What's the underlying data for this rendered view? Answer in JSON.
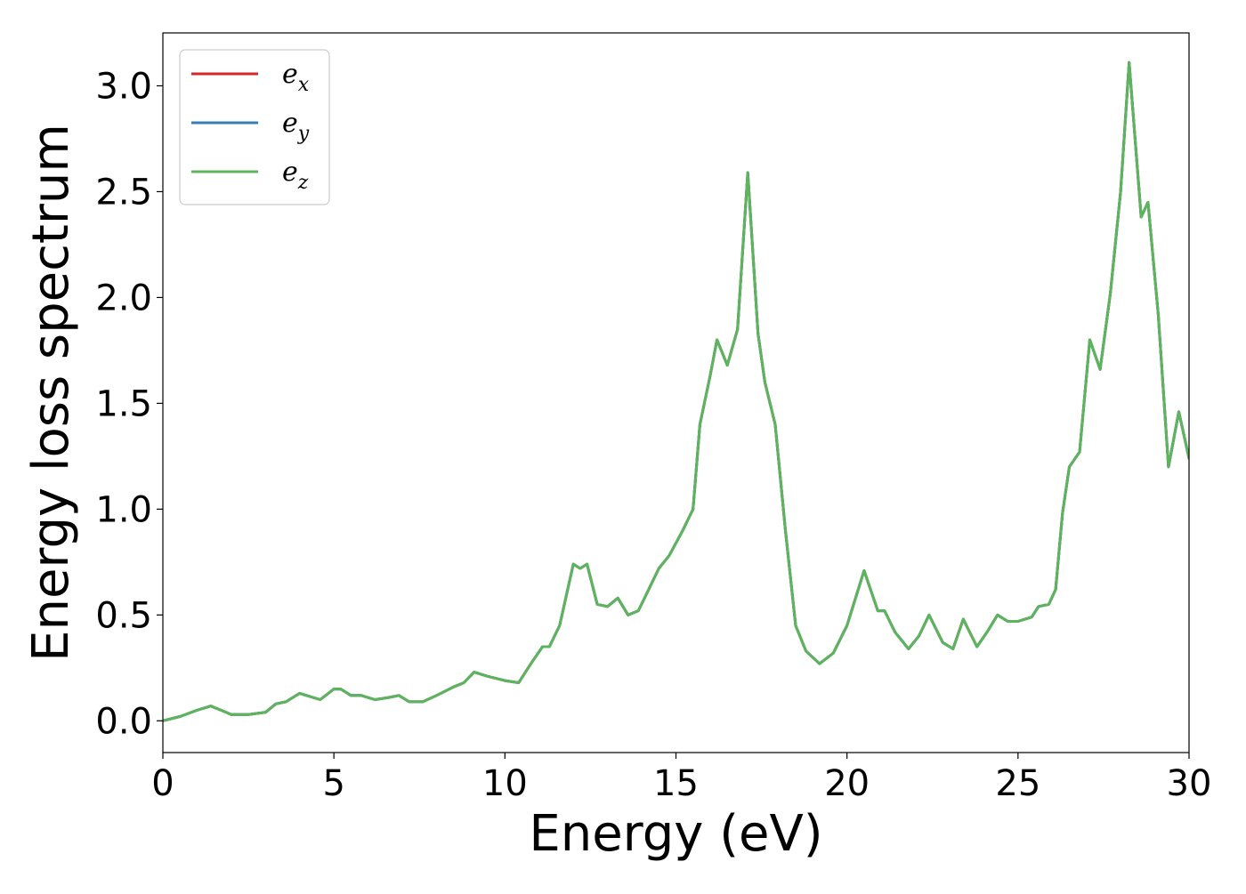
{
  "chart_data": {
    "type": "line",
    "title": "",
    "xlabel": "Energy (eV)",
    "ylabel": "Energy loss spectrum",
    "xlim": [
      0,
      30
    ],
    "ylim": [
      -0.15,
      3.25
    ],
    "xticks": [
      "0",
      "5",
      "10",
      "15",
      "20",
      "25",
      "30"
    ],
    "yticks": [
      "0.0",
      "0.5",
      "1.0",
      "1.5",
      "2.0",
      "2.5",
      "3.0"
    ],
    "grid": false,
    "legend_position": "top-left",
    "series": [
      {
        "name": "e_x",
        "label_base": "e",
        "label_sub": "x",
        "color": "#d62728",
        "x": [
          0,
          0.5,
          1.0,
          1.4,
          1.7,
          2.0,
          2.5,
          3.0,
          3.3,
          3.6,
          4.0,
          4.2,
          4.6,
          5.0,
          5.2,
          5.5,
          5.8,
          6.2,
          6.6,
          6.9,
          7.2,
          7.6,
          8.0,
          8.5,
          8.8,
          9.1,
          9.5,
          10.0,
          10.4,
          10.8,
          11.1,
          11.3,
          11.6,
          12.0,
          12.2,
          12.4,
          12.7,
          13.0,
          13.3,
          13.6,
          13.9,
          14.2,
          14.5,
          14.8,
          15.2,
          15.5,
          15.7,
          16.0,
          16.2,
          16.5,
          16.8,
          17.1,
          17.4,
          17.6,
          17.9,
          18.2,
          18.5,
          18.8,
          19.2,
          19.6,
          20.0,
          20.5,
          20.9,
          21.1,
          21.4,
          21.8,
          22.1,
          22.4,
          22.8,
          23.1,
          23.4,
          23.8,
          24.1,
          24.4,
          24.7,
          25.0,
          25.4,
          25.6,
          25.9,
          26.1,
          26.3,
          26.5,
          26.8,
          27.1,
          27.4,
          27.7,
          28.0,
          28.25,
          28.6,
          28.8,
          29.1,
          29.4,
          29.7,
          30.0
        ],
        "values": [
          0.0,
          0.02,
          0.05,
          0.07,
          0.05,
          0.03,
          0.03,
          0.04,
          0.08,
          0.09,
          0.13,
          0.12,
          0.1,
          0.15,
          0.15,
          0.12,
          0.12,
          0.1,
          0.11,
          0.12,
          0.09,
          0.09,
          0.12,
          0.16,
          0.18,
          0.23,
          0.21,
          0.19,
          0.18,
          0.28,
          0.35,
          0.35,
          0.45,
          0.74,
          0.72,
          0.74,
          0.55,
          0.54,
          0.58,
          0.5,
          0.52,
          0.62,
          0.72,
          0.78,
          0.9,
          1.0,
          1.4,
          1.63,
          1.8,
          1.68,
          1.85,
          2.59,
          1.83,
          1.6,
          1.4,
          0.9,
          0.45,
          0.33,
          0.27,
          0.32,
          0.45,
          0.71,
          0.52,
          0.52,
          0.42,
          0.34,
          0.4,
          0.5,
          0.37,
          0.34,
          0.48,
          0.35,
          0.42,
          0.5,
          0.47,
          0.47,
          0.49,
          0.54,
          0.55,
          0.62,
          0.98,
          1.2,
          1.27,
          1.8,
          1.66,
          2.02,
          2.5,
          3.11,
          2.38,
          2.45,
          1.92,
          1.2,
          1.46,
          1.24
        ]
      },
      {
        "name": "e_y",
        "label_base": "e",
        "label_sub": "y",
        "color": "#377eb8",
        "x": [
          0,
          0.5,
          1.0,
          1.4,
          1.7,
          2.0,
          2.5,
          3.0,
          3.3,
          3.6,
          4.0,
          4.2,
          4.6,
          5.0,
          5.2,
          5.5,
          5.8,
          6.2,
          6.6,
          6.9,
          7.2,
          7.6,
          8.0,
          8.5,
          8.8,
          9.1,
          9.5,
          10.0,
          10.4,
          10.8,
          11.1,
          11.3,
          11.6,
          12.0,
          12.2,
          12.4,
          12.7,
          13.0,
          13.3,
          13.6,
          13.9,
          14.2,
          14.5,
          14.8,
          15.2,
          15.5,
          15.7,
          16.0,
          16.2,
          16.5,
          16.8,
          17.1,
          17.4,
          17.6,
          17.9,
          18.2,
          18.5,
          18.8,
          19.2,
          19.6,
          20.0,
          20.5,
          20.9,
          21.1,
          21.4,
          21.8,
          22.1,
          22.4,
          22.8,
          23.1,
          23.4,
          23.8,
          24.1,
          24.4,
          24.7,
          25.0,
          25.4,
          25.6,
          25.9,
          26.1,
          26.3,
          26.5,
          26.8,
          27.1,
          27.4,
          27.7,
          28.0,
          28.25,
          28.6,
          28.8,
          29.1,
          29.4,
          29.7,
          30.0
        ],
        "values": [
          0.0,
          0.02,
          0.05,
          0.07,
          0.05,
          0.03,
          0.03,
          0.04,
          0.08,
          0.09,
          0.13,
          0.12,
          0.1,
          0.15,
          0.15,
          0.12,
          0.12,
          0.1,
          0.11,
          0.12,
          0.09,
          0.09,
          0.12,
          0.16,
          0.18,
          0.23,
          0.21,
          0.19,
          0.18,
          0.28,
          0.35,
          0.35,
          0.45,
          0.74,
          0.72,
          0.74,
          0.55,
          0.54,
          0.58,
          0.5,
          0.52,
          0.62,
          0.72,
          0.78,
          0.9,
          1.0,
          1.4,
          1.63,
          1.8,
          1.68,
          1.85,
          2.59,
          1.83,
          1.6,
          1.4,
          0.9,
          0.45,
          0.33,
          0.27,
          0.32,
          0.45,
          0.71,
          0.52,
          0.52,
          0.42,
          0.34,
          0.4,
          0.5,
          0.37,
          0.34,
          0.48,
          0.35,
          0.42,
          0.5,
          0.47,
          0.47,
          0.49,
          0.54,
          0.55,
          0.62,
          0.98,
          1.2,
          1.27,
          1.8,
          1.66,
          2.02,
          2.5,
          3.11,
          2.38,
          2.45,
          1.92,
          1.2,
          1.46,
          1.24
        ]
      },
      {
        "name": "e_z",
        "label_base": "e",
        "label_sub": "z",
        "color": "#5cb55c",
        "x": [
          0,
          0.5,
          1.0,
          1.4,
          1.7,
          2.0,
          2.5,
          3.0,
          3.3,
          3.6,
          4.0,
          4.2,
          4.6,
          5.0,
          5.2,
          5.5,
          5.8,
          6.2,
          6.6,
          6.9,
          7.2,
          7.6,
          8.0,
          8.5,
          8.8,
          9.1,
          9.5,
          10.0,
          10.4,
          10.8,
          11.1,
          11.3,
          11.6,
          12.0,
          12.2,
          12.4,
          12.7,
          13.0,
          13.3,
          13.6,
          13.9,
          14.2,
          14.5,
          14.8,
          15.2,
          15.5,
          15.7,
          16.0,
          16.2,
          16.5,
          16.8,
          17.1,
          17.4,
          17.6,
          17.9,
          18.2,
          18.5,
          18.8,
          19.2,
          19.6,
          20.0,
          20.5,
          20.9,
          21.1,
          21.4,
          21.8,
          22.1,
          22.4,
          22.8,
          23.1,
          23.4,
          23.8,
          24.1,
          24.4,
          24.7,
          25.0,
          25.4,
          25.6,
          25.9,
          26.1,
          26.3,
          26.5,
          26.8,
          27.1,
          27.4,
          27.7,
          28.0,
          28.25,
          28.6,
          28.8,
          29.1,
          29.4,
          29.7,
          30.0
        ],
        "values": [
          0.0,
          0.02,
          0.05,
          0.07,
          0.05,
          0.03,
          0.03,
          0.04,
          0.08,
          0.09,
          0.13,
          0.12,
          0.1,
          0.15,
          0.15,
          0.12,
          0.12,
          0.1,
          0.11,
          0.12,
          0.09,
          0.09,
          0.12,
          0.16,
          0.18,
          0.23,
          0.21,
          0.19,
          0.18,
          0.28,
          0.35,
          0.35,
          0.45,
          0.74,
          0.72,
          0.74,
          0.55,
          0.54,
          0.58,
          0.5,
          0.52,
          0.62,
          0.72,
          0.78,
          0.9,
          1.0,
          1.4,
          1.63,
          1.8,
          1.68,
          1.85,
          2.59,
          1.83,
          1.6,
          1.4,
          0.9,
          0.45,
          0.33,
          0.27,
          0.32,
          0.45,
          0.71,
          0.52,
          0.52,
          0.42,
          0.34,
          0.4,
          0.5,
          0.37,
          0.34,
          0.48,
          0.35,
          0.42,
          0.5,
          0.47,
          0.47,
          0.49,
          0.54,
          0.55,
          0.62,
          0.98,
          1.2,
          1.27,
          1.8,
          1.66,
          2.02,
          2.5,
          3.11,
          2.38,
          2.45,
          1.92,
          1.2,
          1.46,
          1.24
        ]
      }
    ]
  }
}
